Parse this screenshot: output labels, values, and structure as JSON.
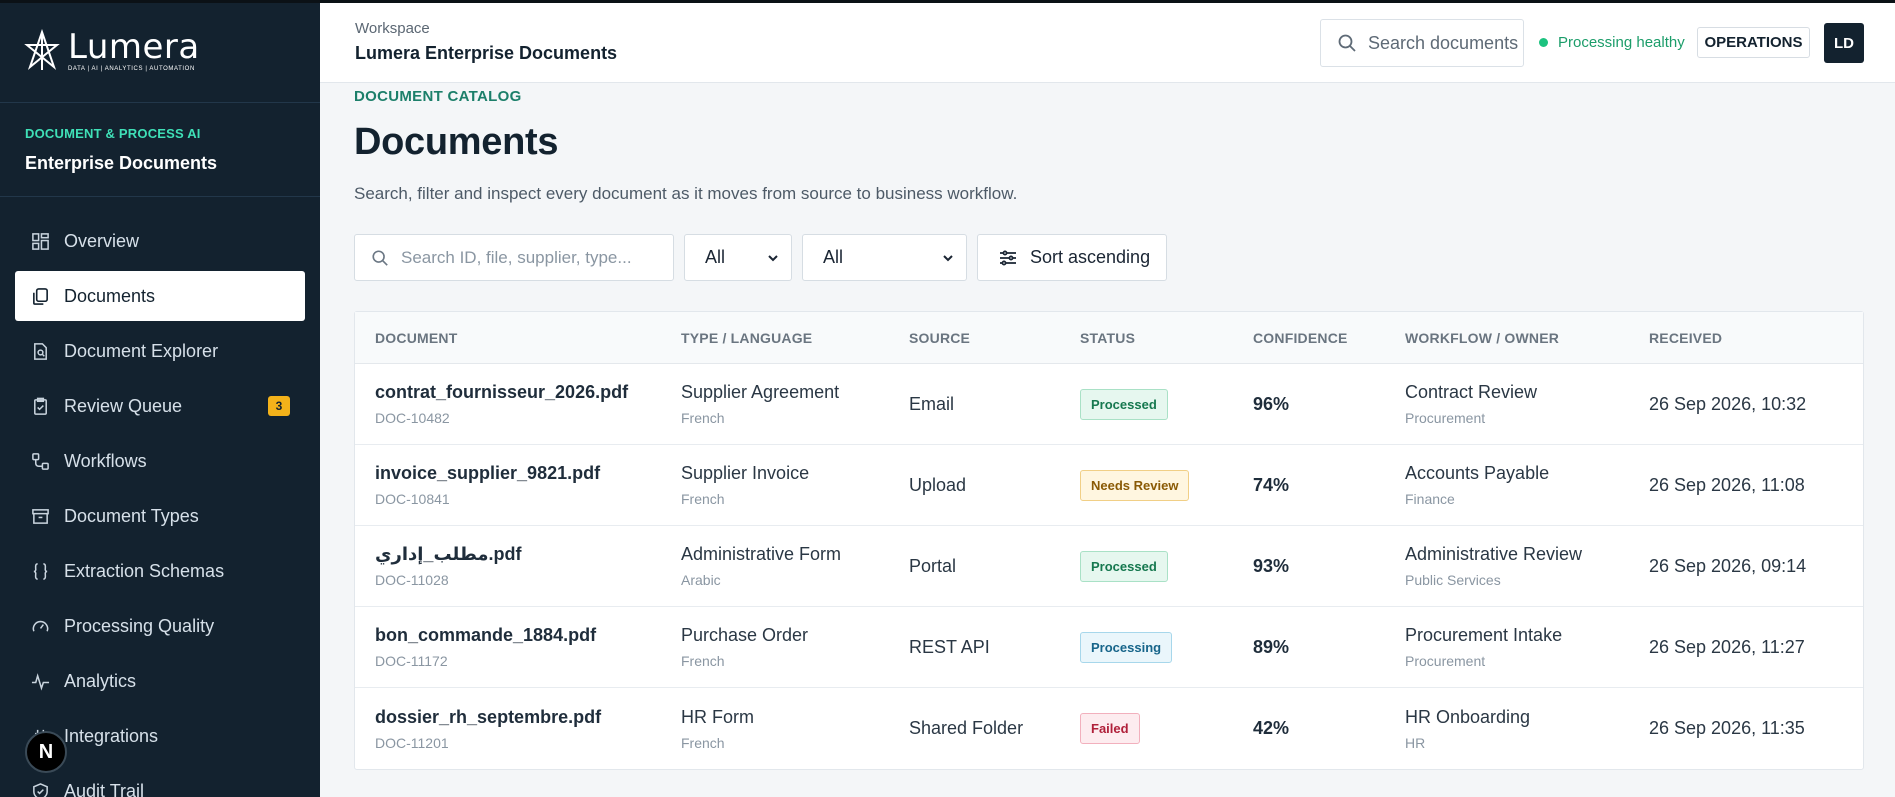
{
  "brand": {
    "name": "Lumera",
    "tagline": "DATA | AI | ANALYTICS | AUTOMATION"
  },
  "sidebar": {
    "section_kicker": "DOCUMENT & PROCESS AI",
    "section_title": "Enterprise Documents",
    "items": [
      {
        "label": "Overview",
        "icon": "grid-icon"
      },
      {
        "label": "Documents",
        "icon": "documents-icon",
        "active": true
      },
      {
        "label": "Document Explorer",
        "icon": "file-search-icon"
      },
      {
        "label": "Review Queue",
        "icon": "clipboard-icon",
        "badge": "3"
      },
      {
        "label": "Workflows",
        "icon": "workflow-icon"
      },
      {
        "label": "Document Types",
        "icon": "archive-icon"
      },
      {
        "label": "Extraction Schemas",
        "icon": "braces-icon"
      },
      {
        "label": "Processing Quality",
        "icon": "gauge-icon"
      },
      {
        "label": "Analytics",
        "icon": "activity-icon"
      },
      {
        "label": "Integrations",
        "icon": "plug-icon"
      },
      {
        "label": "Audit Trail",
        "icon": "shield-check-icon"
      }
    ],
    "floating_badge": "N"
  },
  "header": {
    "kicker": "Workspace",
    "title": "Lumera Enterprise Documents",
    "search_placeholder": "Search documents",
    "status": "Processing healthy",
    "role_button": "OPERATIONS",
    "avatar": "LD"
  },
  "main": {
    "kicker": "DOCUMENT CATALOG",
    "title": "Documents",
    "subtitle": "Search, filter and inspect every document as it moves from source to business workflow.",
    "filters": {
      "search_placeholder": "Search ID, file, supplier, type...",
      "select1": "All",
      "select2": "All",
      "sort_label": "Sort ascending"
    },
    "table": {
      "columns": [
        "DOCUMENT",
        "TYPE / LANGUAGE",
        "SOURCE",
        "STATUS",
        "CONFIDENCE",
        "WORKFLOW / OWNER",
        "RECEIVED"
      ],
      "rows": [
        {
          "file": "contrat_fournisseur_2026.pdf",
          "id": "DOC-10482",
          "type": "Supplier Agreement",
          "language": "French",
          "source": "Email",
          "status": "Processed",
          "status_kind": "processed",
          "confidence": "96%",
          "workflow": "Contract Review",
          "owner": "Procurement",
          "received": "26 Sep 2026, 10:32"
        },
        {
          "file": "invoice_supplier_9821.pdf",
          "id": "DOC-10841",
          "type": "Supplier Invoice",
          "language": "French",
          "source": "Upload",
          "status": "Needs Review",
          "status_kind": "review",
          "confidence": "74%",
          "workflow": "Accounts Payable",
          "owner": "Finance",
          "received": "26 Sep 2026, 11:08"
        },
        {
          "file": "مطلب_إداري.pdf",
          "id": "DOC-11028",
          "type": "Administrative Form",
          "language": "Arabic",
          "source": "Portal",
          "status": "Processed",
          "status_kind": "processed",
          "confidence": "93%",
          "workflow": "Administrative Review",
          "owner": "Public Services",
          "received": "26 Sep 2026, 09:14"
        },
        {
          "file": "bon_commande_1884.pdf",
          "id": "DOC-11172",
          "type": "Purchase Order",
          "language": "French",
          "source": "REST API",
          "status": "Processing",
          "status_kind": "processing",
          "confidence": "89%",
          "workflow": "Procurement Intake",
          "owner": "Procurement",
          "received": "26 Sep 2026, 11:27"
        },
        {
          "file": "dossier_rh_septembre.pdf",
          "id": "DOC-11201",
          "type": "HR Form",
          "language": "French",
          "source": "Shared Folder",
          "status": "Failed",
          "status_kind": "failed",
          "confidence": "42%",
          "workflow": "HR Onboarding",
          "owner": "HR",
          "received": "26 Sep 2026, 11:35"
        }
      ]
    }
  },
  "colors": {
    "sidebar_bg": "#13222f",
    "accent": "#3fe0b7",
    "badge": "#f3b21a",
    "healthy": "#1cc27f"
  }
}
